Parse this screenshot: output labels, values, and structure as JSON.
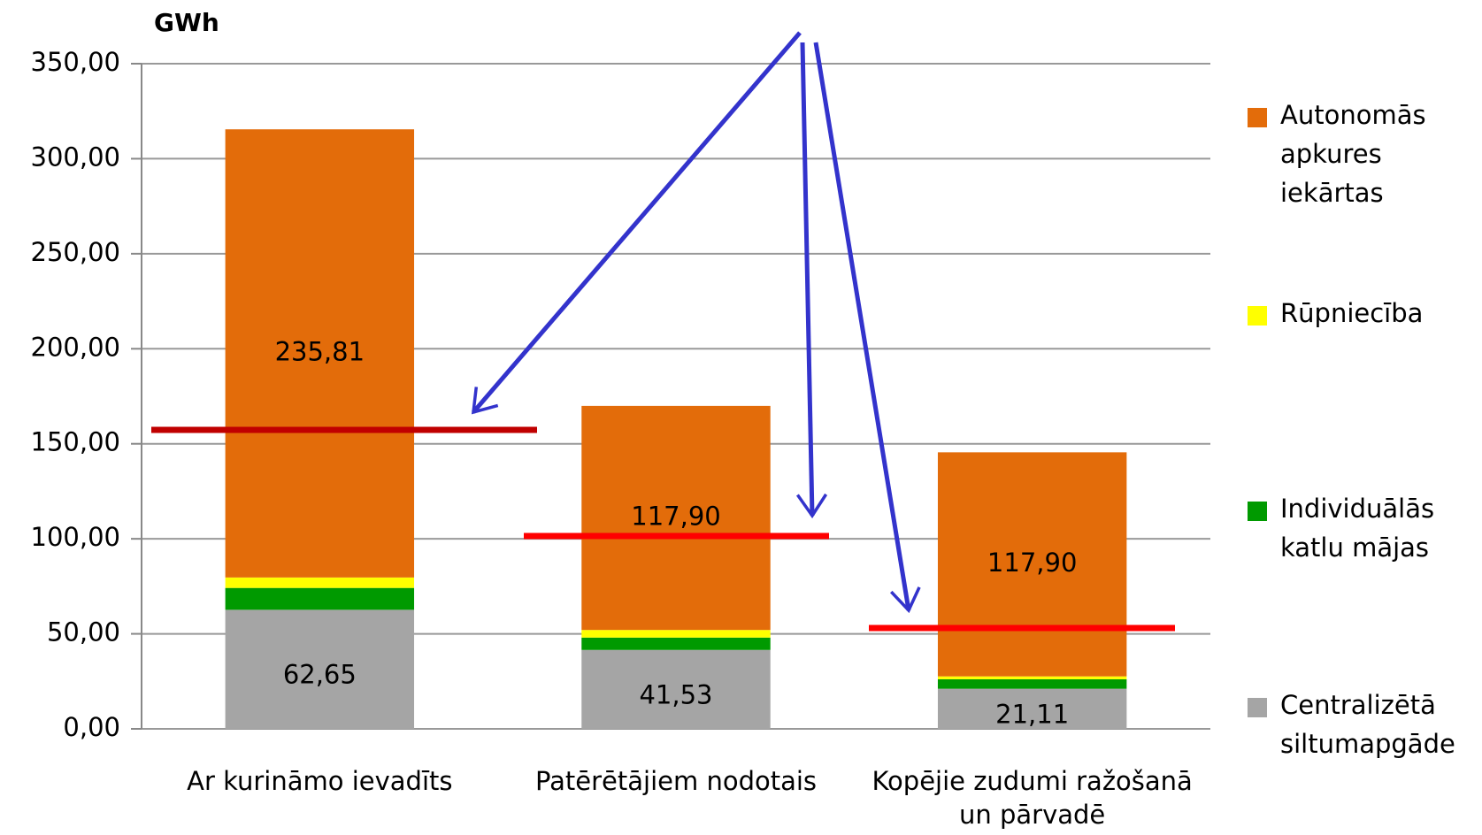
{
  "chart_data": {
    "type": "stacked_bar",
    "title": "GWh",
    "categories": [
      "Ar kurināmo ievadīts",
      "Patērētājiem nodotais",
      "Kopējie zudumi ražošanā un pārvadē"
    ],
    "series": [
      {
        "name": "Centralizētā siltumapgāde",
        "color": "#a5a5a5",
        "values": [
          62.65,
          41.53,
          21.11
        ],
        "value_labels": [
          "62,65",
          "41,53",
          "21,11"
        ]
      },
      {
        "name": "Individuālās katlu mājas",
        "color": "#009a00",
        "values": [
          11.5,
          6.5,
          5
        ]
      },
      {
        "name": "Rūpniecība",
        "color": "#ffff00",
        "values": [
          5.5,
          4,
          1.5
        ]
      },
      {
        "name": "Autonomās apkures iekārtas",
        "color": "#e36c0a",
        "values": [
          235.81,
          117.9,
          117.9
        ],
        "value_labels": [
          "235,81",
          "117,90",
          "117,90"
        ]
      }
    ],
    "ylim": [
      0,
      350
    ],
    "yticks": [
      {
        "value": 0,
        "label": "0,00"
      },
      {
        "value": 50,
        "label": "50,00"
      },
      {
        "value": 100,
        "label": "100,00"
      },
      {
        "value": 150,
        "label": "150,00"
      },
      {
        "value": 200,
        "label": "200,00"
      },
      {
        "value": 250,
        "label": "250,00"
      },
      {
        "value": 300,
        "label": "300,00"
      },
      {
        "value": 350,
        "label": "350,00"
      }
    ],
    "grid": true,
    "legend": "right"
  }
}
